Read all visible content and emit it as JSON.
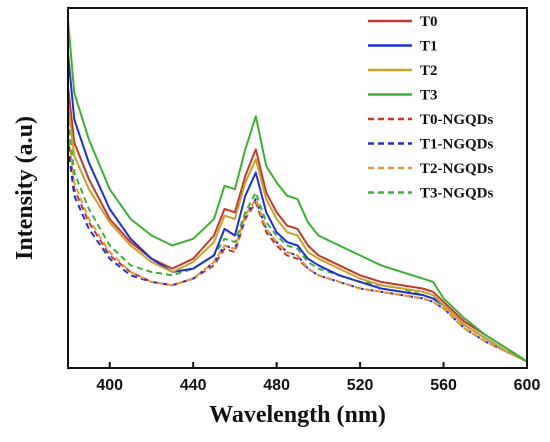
{
  "chart_data": {
    "type": "line",
    "xlabel": "Wavelength (nm)",
    "ylabel": "Intensity (a.u)",
    "xlim": [
      380,
      600
    ],
    "ylim": [
      0,
      1
    ],
    "xticks": [
      400,
      440,
      480,
      520,
      560,
      600
    ],
    "yticks_visible": false,
    "grid": false,
    "legend_position": "top-right",
    "series": [
      {
        "name": "T0",
        "color": "#c0392b",
        "dash": "solid",
        "x": [
          380,
          383,
          390,
          400,
          410,
          420,
          430,
          440,
          450,
          455,
          460,
          465,
          470,
          475,
          480,
          485,
          490,
          495,
          500,
          510,
          520,
          530,
          540,
          550,
          555,
          560,
          570,
          580,
          590,
          600
        ],
        "values": [
          0.85,
          0.68,
          0.57,
          0.45,
          0.38,
          0.33,
          0.3,
          0.33,
          0.4,
          0.48,
          0.47,
          0.58,
          0.66,
          0.53,
          0.47,
          0.43,
          0.42,
          0.37,
          0.34,
          0.31,
          0.28,
          0.26,
          0.25,
          0.24,
          0.23,
          0.2,
          0.14,
          0.1,
          0.06,
          0.02
        ]
      },
      {
        "name": "T1",
        "color": "#1f2fd1",
        "dash": "solid",
        "x": [
          380,
          383,
          390,
          400,
          410,
          420,
          430,
          440,
          450,
          455,
          460,
          465,
          470,
          475,
          480,
          485,
          490,
          495,
          500,
          510,
          520,
          530,
          540,
          550,
          555,
          560,
          570,
          580,
          590,
          600
        ],
        "values": [
          0.95,
          0.75,
          0.62,
          0.48,
          0.39,
          0.33,
          0.29,
          0.3,
          0.34,
          0.42,
          0.4,
          0.52,
          0.59,
          0.47,
          0.41,
          0.38,
          0.37,
          0.33,
          0.31,
          0.28,
          0.26,
          0.24,
          0.23,
          0.22,
          0.21,
          0.19,
          0.13,
          0.09,
          0.05,
          0.02
        ]
      },
      {
        "name": "T2",
        "color": "#c9a227",
        "dash": "solid",
        "x": [
          380,
          383,
          390,
          400,
          410,
          420,
          430,
          440,
          450,
          455,
          460,
          465,
          470,
          475,
          480,
          485,
          490,
          495,
          500,
          510,
          520,
          530,
          540,
          550,
          555,
          560,
          570,
          580,
          590,
          600
        ],
        "values": [
          0.8,
          0.64,
          0.54,
          0.44,
          0.37,
          0.32,
          0.29,
          0.32,
          0.38,
          0.46,
          0.45,
          0.56,
          0.63,
          0.51,
          0.45,
          0.41,
          0.4,
          0.35,
          0.33,
          0.3,
          0.27,
          0.25,
          0.24,
          0.23,
          0.22,
          0.19,
          0.13,
          0.09,
          0.05,
          0.02
        ]
      },
      {
        "name": "T3",
        "color": "#3cb034",
        "dash": "solid",
        "x": [
          380,
          383,
          390,
          400,
          410,
          420,
          430,
          440,
          450,
          455,
          460,
          465,
          470,
          475,
          480,
          485,
          490,
          495,
          500,
          510,
          520,
          530,
          540,
          550,
          555,
          560,
          570,
          580,
          590,
          600
        ],
        "values": [
          1.05,
          0.83,
          0.69,
          0.54,
          0.45,
          0.4,
          0.37,
          0.39,
          0.45,
          0.55,
          0.54,
          0.66,
          0.76,
          0.61,
          0.56,
          0.52,
          0.51,
          0.44,
          0.4,
          0.37,
          0.34,
          0.31,
          0.29,
          0.27,
          0.26,
          0.21,
          0.15,
          0.1,
          0.06,
          0.02
        ]
      },
      {
        "name": "T0-NGQDs",
        "color": "#c0392b",
        "dash": "dashed",
        "x": [
          380,
          383,
          390,
          400,
          410,
          420,
          430,
          440,
          450,
          455,
          460,
          465,
          470,
          475,
          480,
          485,
          490,
          495,
          500,
          510,
          520,
          530,
          540,
          550,
          555,
          560,
          570,
          580,
          590,
          600
        ],
        "values": [
          0.7,
          0.54,
          0.44,
          0.34,
          0.29,
          0.26,
          0.25,
          0.27,
          0.31,
          0.36,
          0.35,
          0.45,
          0.5,
          0.41,
          0.37,
          0.34,
          0.33,
          0.3,
          0.28,
          0.26,
          0.24,
          0.23,
          0.22,
          0.21,
          0.2,
          0.18,
          0.12,
          0.08,
          0.05,
          0.02
        ]
      },
      {
        "name": "T1-NGQDs",
        "color": "#1f2fd1",
        "dash": "dashed",
        "x": [
          380,
          383,
          390,
          400,
          410,
          420,
          430,
          440,
          450,
          455,
          460,
          465,
          470,
          475,
          480,
          485,
          490,
          495,
          500,
          510,
          520,
          530,
          540,
          550,
          555,
          560,
          570,
          580,
          590,
          600
        ],
        "values": [
          0.67,
          0.52,
          0.42,
          0.33,
          0.28,
          0.26,
          0.25,
          0.27,
          0.32,
          0.37,
          0.36,
          0.46,
          0.51,
          0.42,
          0.38,
          0.35,
          0.34,
          0.3,
          0.28,
          0.26,
          0.24,
          0.23,
          0.22,
          0.21,
          0.2,
          0.18,
          0.12,
          0.08,
          0.05,
          0.02
        ]
      },
      {
        "name": "T2-NGQDs",
        "color": "#e09a3a",
        "dash": "dashed",
        "x": [
          380,
          383,
          390,
          400,
          410,
          420,
          430,
          440,
          450,
          455,
          460,
          465,
          470,
          475,
          480,
          485,
          490,
          495,
          500,
          510,
          520,
          530,
          540,
          550,
          555,
          560,
          570,
          580,
          590,
          600
        ],
        "values": [
          0.72,
          0.56,
          0.45,
          0.35,
          0.29,
          0.26,
          0.25,
          0.27,
          0.32,
          0.37,
          0.36,
          0.46,
          0.51,
          0.42,
          0.38,
          0.35,
          0.34,
          0.3,
          0.28,
          0.26,
          0.24,
          0.23,
          0.22,
          0.21,
          0.2,
          0.18,
          0.12,
          0.08,
          0.05,
          0.02
        ]
      },
      {
        "name": "T3-NGQDs",
        "color": "#3cb034",
        "dash": "dashed",
        "x": [
          380,
          383,
          390,
          400,
          410,
          420,
          430,
          440,
          450,
          455,
          460,
          465,
          470,
          475,
          480,
          485,
          490,
          495,
          500,
          510,
          520,
          530,
          540,
          550,
          555,
          560,
          570,
          580,
          590,
          600
        ],
        "values": [
          0.75,
          0.59,
          0.48,
          0.37,
          0.31,
          0.29,
          0.28,
          0.3,
          0.34,
          0.39,
          0.38,
          0.47,
          0.53,
          0.44,
          0.4,
          0.37,
          0.36,
          0.32,
          0.3,
          0.28,
          0.26,
          0.25,
          0.24,
          0.22,
          0.21,
          0.19,
          0.13,
          0.09,
          0.05,
          0.02
        ]
      }
    ]
  }
}
